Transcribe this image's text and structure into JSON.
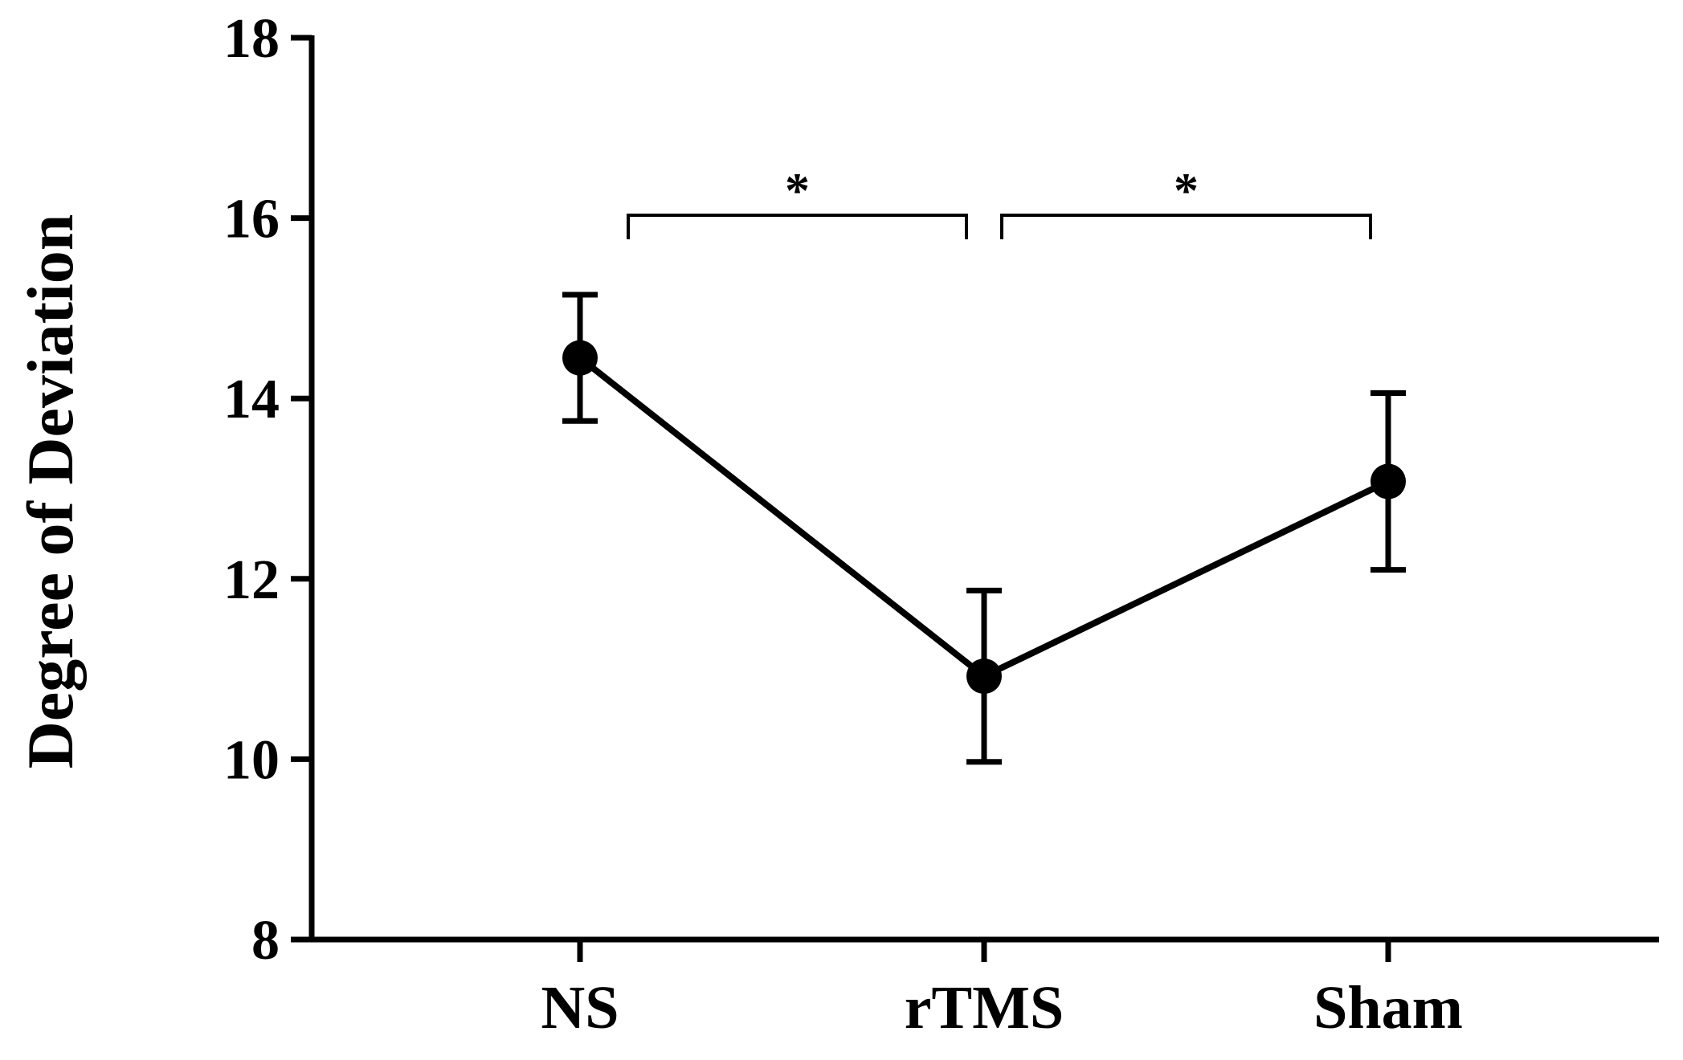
{
  "chart_data": {
    "type": "line",
    "title": "",
    "xlabel": "",
    "ylabel": "Degree of Deviation",
    "categories": [
      "NS",
      "rTMS",
      "Sham"
    ],
    "series": [
      {
        "values": [
          14.45,
          10.92,
          13.08
        ],
        "error": [
          0.7,
          0.95,
          0.98
        ]
      }
    ],
    "ylim": [
      8,
      18
    ],
    "yticks": [
      8,
      10,
      12,
      14,
      16,
      18
    ],
    "grid": false,
    "legend": "none",
    "annotations": [
      {
        "from": "NS",
        "to": "rTMS",
        "text": "*"
      },
      {
        "from": "rTMS",
        "to": "Sham",
        "text": "*"
      }
    ],
    "colors": {
      "line": "#000000",
      "marker": "#000000"
    }
  }
}
